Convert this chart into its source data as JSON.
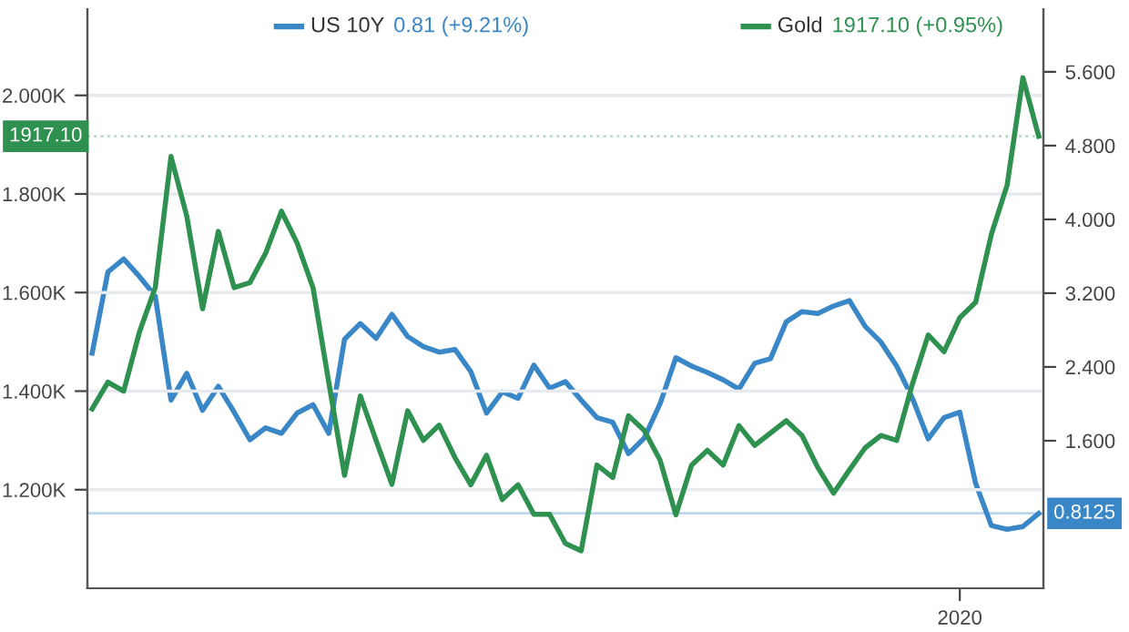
{
  "chart_data": {
    "type": "line",
    "categories": [
      null,
      null,
      null,
      null,
      null,
      null,
      null,
      null,
      null,
      null,
      null,
      null,
      null,
      null,
      null,
      null,
      null,
      null,
      null,
      null,
      null,
      null,
      null,
      null,
      null,
      null,
      null,
      null,
      null,
      null,
      null,
      null,
      null,
      null,
      null,
      null,
      null,
      null,
      null,
      null,
      null,
      null,
      null,
      null,
      null,
      null,
      null,
      null,
      null,
      null,
      null,
      null,
      null,
      null,
      null,
      "2020",
      null,
      null,
      null,
      null,
      null
    ],
    "series": [
      {
        "name": "US 10Y",
        "color": "#3a87c8",
        "axis": "y2",
        "values": [
          2.55,
          3.43,
          3.57,
          3.38,
          3.17,
          2.04,
          2.33,
          1.93,
          2.19,
          1.91,
          1.61,
          1.74,
          1.68,
          1.9,
          1.99,
          1.68,
          2.7,
          2.87,
          2.71,
          2.97,
          2.73,
          2.62,
          2.56,
          2.59,
          2.35,
          1.9,
          2.13,
          2.06,
          2.42,
          2.17,
          2.24,
          2.04,
          1.85,
          1.8,
          1.46,
          1.63,
          2.0,
          2.5,
          2.41,
          2.34,
          2.26,
          2.16,
          2.44,
          2.49,
          2.89,
          3.0,
          2.98,
          3.06,
          3.12,
          2.84,
          2.67,
          2.41,
          2.06,
          1.62,
          1.85,
          1.91,
          1.14,
          0.68,
          0.64,
          0.67,
          0.81
        ]
      },
      {
        "name": "Gold",
        "color": "#2e9150",
        "axis": "y",
        "values": [
          1364,
          1418,
          1400,
          1520,
          1610,
          1876,
          1755,
          1567,
          1724,
          1610,
          1620,
          1680,
          1765,
          1700,
          1610,
          1418,
          1229,
          1390,
          1300,
          1211,
          1360,
          1300,
          1331,
          1265,
          1210,
          1270,
          1180,
          1210,
          1150,
          1150,
          1091,
          1076,
          1250,
          1225,
          1350,
          1320,
          1260,
          1149,
          1250,
          1280,
          1250,
          1330,
          1290,
          1315,
          1340,
          1310,
          1245,
          1193,
          1240,
          1285,
          1310,
          1300,
          1415,
          1514,
          1480,
          1549,
          1580,
          1718,
          1818,
          2036,
          1917
        ]
      }
    ],
    "ylim": [
      1000,
      2175
    ],
    "yticks": [
      {
        "value": 1200,
        "label": "1.200K"
      },
      {
        "value": 1400,
        "label": "1.400K"
      },
      {
        "value": 1600,
        "label": "1.600K"
      },
      {
        "value": 1800,
        "label": "1.800K"
      },
      {
        "value": 2000,
        "label": "2.000K"
      }
    ],
    "y2lim": [
      0,
      6.28
    ],
    "y2ticks": [
      {
        "value": 1.6,
        "label": "1.600"
      },
      {
        "value": 2.4,
        "label": "2.400"
      },
      {
        "value": 3.2,
        "label": "3.200"
      },
      {
        "value": 4.0,
        "label": "4.000"
      },
      {
        "value": 4.8,
        "label": "4.800"
      },
      {
        "value": 5.6,
        "label": "5.600"
      }
    ],
    "ref_lines": [
      {
        "axis": "y",
        "value": 1917.1,
        "label": "1917.10",
        "color": "#2e9150",
        "line_style": "dotted"
      },
      {
        "axis": "y2",
        "value": 0.8125,
        "label": "0.8125",
        "color": "#3a87c8",
        "line_style": "solid"
      }
    ],
    "annotations": [
      "0.81 (+9.21%)",
      "1917.10 (+0.95%)"
    ],
    "grid": "y",
    "legend": "top left",
    "marker": "none",
    "line_style": "solid"
  }
}
